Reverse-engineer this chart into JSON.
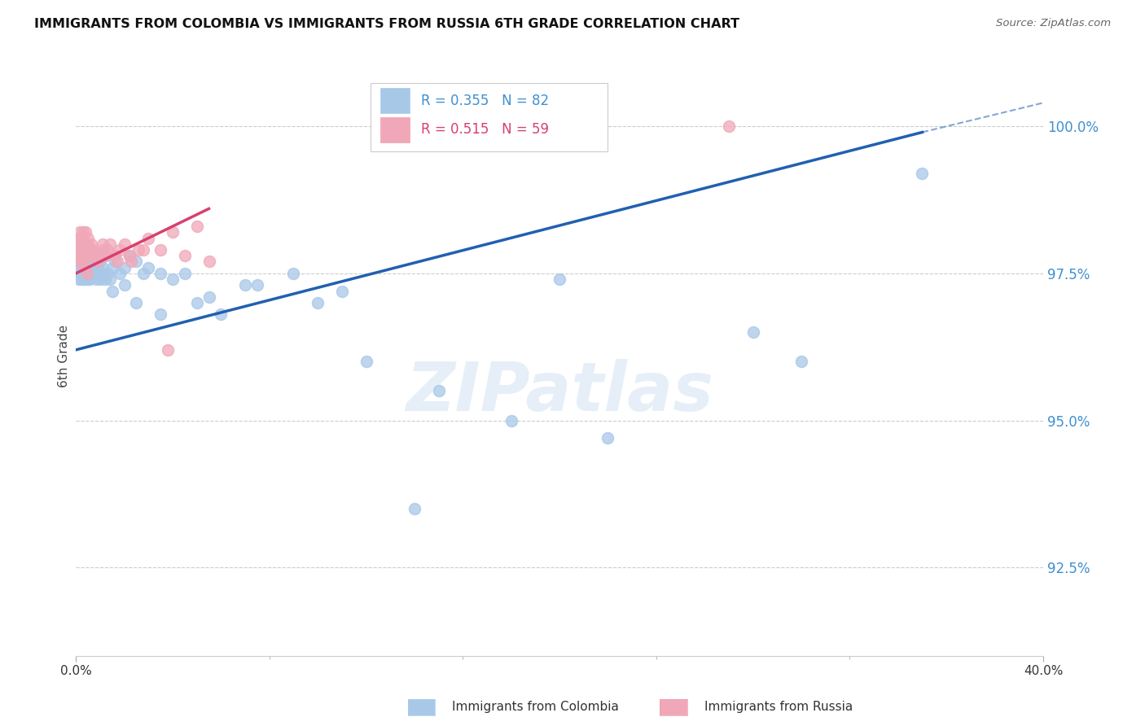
{
  "title": "IMMIGRANTS FROM COLOMBIA VS IMMIGRANTS FROM RUSSIA 6TH GRADE CORRELATION CHART",
  "source": "Source: ZipAtlas.com",
  "ylabel": "6th Grade",
  "ytick_values": [
    92.5,
    95.0,
    97.5,
    100.0
  ],
  "legend_colombia": "Immigrants from Colombia",
  "legend_russia": "Immigrants from Russia",
  "color_colombia": "#A8C8E8",
  "color_russia": "#F0A8B8",
  "color_line_colombia": "#2060B0",
  "color_line_russia": "#D84070",
  "color_right_axis": "#4090D0",
  "xlim": [
    0.0,
    40.0
  ],
  "ylim": [
    91.0,
    101.2
  ],
  "blue_line_x0": 0.0,
  "blue_line_y0": 96.2,
  "blue_line_x1": 35.0,
  "blue_line_y1": 99.9,
  "blue_dash_x0": 35.0,
  "blue_dash_y0": 99.9,
  "blue_dash_x1": 40.0,
  "blue_dash_y1": 100.4,
  "pink_line_x0": 0.0,
  "pink_line_y0": 97.5,
  "pink_line_x1": 5.5,
  "pink_line_y1": 98.6,
  "colombia_x": [
    0.05,
    0.08,
    0.1,
    0.1,
    0.12,
    0.15,
    0.15,
    0.18,
    0.2,
    0.2,
    0.22,
    0.25,
    0.25,
    0.28,
    0.3,
    0.3,
    0.32,
    0.35,
    0.35,
    0.38,
    0.4,
    0.4,
    0.42,
    0.45,
    0.45,
    0.48,
    0.5,
    0.5,
    0.55,
    0.55,
    0.6,
    0.6,
    0.65,
    0.7,
    0.7,
    0.75,
    0.8,
    0.8,
    0.85,
    0.9,
    0.9,
    0.95,
    1.0,
    1.0,
    1.1,
    1.1,
    1.2,
    1.3,
    1.4,
    1.5,
    1.6,
    1.8,
    2.0,
    2.2,
    2.5,
    2.8,
    3.0,
    3.5,
    4.0,
    5.0,
    6.0,
    7.5,
    10.0,
    12.0,
    15.0,
    18.0,
    22.0,
    28.0,
    35.0,
    1.2,
    1.5,
    2.0,
    2.5,
    3.5,
    4.5,
    5.5,
    7.0,
    9.0,
    11.0,
    14.0,
    20.0,
    30.0
  ],
  "colombia_y": [
    97.6,
    97.8,
    97.5,
    97.9,
    97.4,
    98.0,
    97.7,
    97.6,
    97.8,
    97.5,
    97.4,
    97.6,
    97.9,
    97.7,
    97.5,
    97.8,
    97.6,
    97.4,
    97.7,
    97.5,
    97.6,
    97.8,
    97.5,
    97.7,
    97.4,
    97.6,
    97.5,
    97.8,
    97.6,
    97.4,
    97.7,
    97.5,
    97.6,
    97.8,
    97.5,
    97.6,
    97.5,
    97.7,
    97.4,
    97.6,
    97.8,
    97.5,
    97.4,
    97.7,
    97.5,
    97.6,
    97.8,
    97.5,
    97.4,
    97.6,
    97.7,
    97.5,
    97.6,
    97.8,
    97.7,
    97.5,
    97.6,
    97.5,
    97.4,
    97.0,
    96.8,
    97.3,
    97.0,
    96.0,
    95.5,
    95.0,
    94.7,
    96.5,
    99.2,
    97.4,
    97.2,
    97.3,
    97.0,
    96.8,
    97.5,
    97.1,
    97.3,
    97.5,
    97.2,
    93.5,
    97.4,
    96.0
  ],
  "russia_x": [
    0.05,
    0.08,
    0.1,
    0.12,
    0.15,
    0.15,
    0.18,
    0.2,
    0.2,
    0.22,
    0.25,
    0.25,
    0.28,
    0.3,
    0.3,
    0.32,
    0.35,
    0.38,
    0.4,
    0.4,
    0.42,
    0.45,
    0.48,
    0.5,
    0.5,
    0.55,
    0.6,
    0.65,
    0.7,
    0.8,
    0.9,
    1.0,
    1.1,
    1.2,
    1.4,
    1.6,
    1.8,
    2.0,
    2.3,
    2.6,
    3.0,
    3.5,
    4.0,
    4.5,
    5.0,
    5.5,
    0.35,
    0.45,
    0.55,
    0.65,
    0.75,
    0.9,
    1.1,
    1.3,
    1.7,
    2.2,
    2.8,
    27.0,
    3.8
  ],
  "russia_y": [
    97.9,
    98.0,
    97.8,
    98.1,
    97.7,
    98.2,
    98.0,
    97.8,
    98.1,
    97.9,
    98.0,
    97.7,
    98.1,
    97.8,
    98.2,
    97.9,
    97.8,
    98.0,
    97.9,
    98.2,
    97.8,
    98.0,
    97.9,
    97.8,
    98.1,
    97.9,
    97.8,
    98.0,
    97.9,
    97.8,
    97.7,
    97.8,
    97.9,
    97.8,
    98.0,
    97.8,
    97.9,
    98.0,
    97.7,
    97.9,
    98.1,
    97.9,
    98.2,
    97.8,
    98.3,
    97.7,
    97.6,
    97.5,
    97.8,
    97.9,
    97.8,
    97.8,
    98.0,
    97.9,
    97.7,
    97.8,
    97.9,
    100.0,
    96.2
  ]
}
